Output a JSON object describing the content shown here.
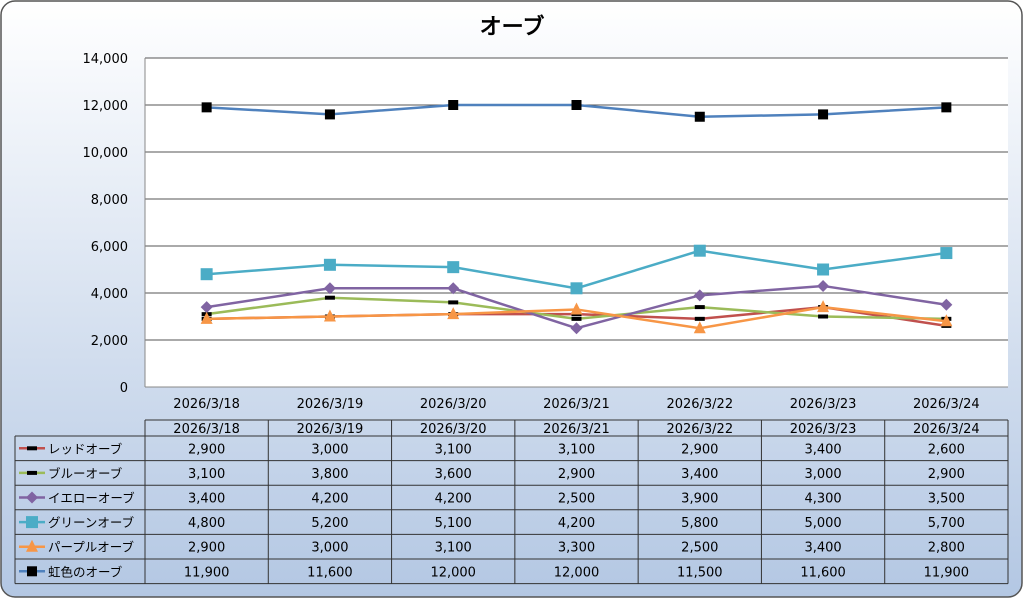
{
  "chart_data": {
    "type": "line",
    "title": "オーブ",
    "categories": [
      "2026/3/18",
      "2026/3/19",
      "2026/3/20",
      "2026/3/21",
      "2026/3/22",
      "2026/3/23",
      "2026/3/24"
    ],
    "ylim": [
      0,
      14000
    ],
    "yticks": [
      "0",
      "2,000",
      "4,000",
      "6,000",
      "8,000",
      "10,000",
      "12,000",
      "14,000"
    ],
    "grid": true,
    "legend": "data-table",
    "series": [
      {
        "name": "レッドオーブ",
        "color": "#c0504d",
        "marker": "dash",
        "values": [
          2900,
          3000,
          3100,
          3100,
          2900,
          3400,
          2600
        ],
        "labels": [
          "2,900",
          "3,000",
          "3,100",
          "3,100",
          "2,900",
          "3,400",
          "2,600"
        ]
      },
      {
        "name": "ブルーオーブ",
        "color": "#9bbb59",
        "marker": "dash",
        "values": [
          3100,
          3800,
          3600,
          2900,
          3400,
          3000,
          2900
        ],
        "labels": [
          "3,100",
          "3,800",
          "3,600",
          "2,900",
          "3,400",
          "3,000",
          "2,900"
        ]
      },
      {
        "name": "イエローオーブ",
        "color": "#8064a2",
        "marker": "diamond",
        "values": [
          3400,
          4200,
          4200,
          2500,
          3900,
          4300,
          3500
        ],
        "labels": [
          "3,400",
          "4,200",
          "4,200",
          "2,500",
          "3,900",
          "4,300",
          "3,500"
        ]
      },
      {
        "name": "グリーンオーブ",
        "color": "#4bacc6",
        "marker": "square",
        "values": [
          4800,
          5200,
          5100,
          4200,
          5800,
          5000,
          5700
        ],
        "labels": [
          "4,800",
          "5,200",
          "5,100",
          "4,200",
          "5,800",
          "5,000",
          "5,700"
        ]
      },
      {
        "name": "パープルオーブ",
        "color": "#f79646",
        "marker": "triangle",
        "values": [
          2900,
          3000,
          3100,
          3300,
          2500,
          3400,
          2800
        ],
        "labels": [
          "2,900",
          "3,000",
          "3,100",
          "3,300",
          "2,500",
          "3,400",
          "2,800"
        ]
      },
      {
        "name": "虹色のオーブ",
        "color": "#4f81bd",
        "marker": "black-square",
        "values": [
          11900,
          11600,
          12000,
          12000,
          11500,
          11600,
          11900
        ],
        "labels": [
          "11,900",
          "11,600",
          "12,000",
          "12,000",
          "11,500",
          "11,600",
          "11,900"
        ]
      }
    ]
  }
}
